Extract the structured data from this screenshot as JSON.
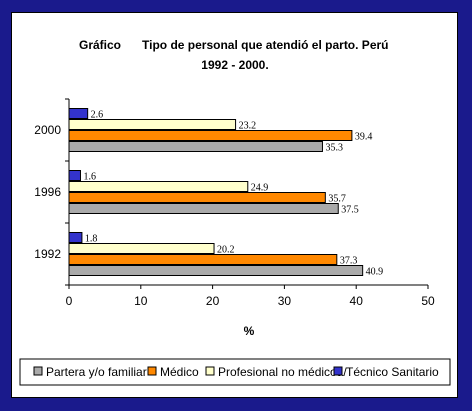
{
  "chart_data": {
    "type": "bar",
    "orientation": "horizontal",
    "title_prefix": "Gráfico",
    "title_line1": "Tipo de personal que atendió el parto. Perú",
    "title_line2": "1992 - 2000.",
    "xlabel": "%",
    "xlim": [
      0,
      50
    ],
    "xticks": [
      0,
      10,
      20,
      30,
      40,
      50
    ],
    "categories": [
      "2000",
      "1996",
      "1992"
    ],
    "series": [
      {
        "name": "Técnico Sanitario",
        "color": "#3333cc",
        "values": [
          2.6,
          1.6,
          1.8
        ]
      },
      {
        "name": "Profesional no médicoa/",
        "color": "#ffffcc",
        "values": [
          23.2,
          24.9,
          20.2
        ]
      },
      {
        "name": "Médico",
        "color": "#ff8800",
        "values": [
          39.4,
          35.7,
          37.3
        ]
      },
      {
        "name": "Partera y/o familiar",
        "color": "#aaaaaa",
        "values": [
          35.3,
          37.5,
          40.9
        ]
      }
    ],
    "legend_order": [
      "Partera y/o familiar",
      "Médico",
      "Profesional no médicoa/",
      "Técnico Sanitario"
    ],
    "legend_position": "bottom",
    "grid": false
  }
}
